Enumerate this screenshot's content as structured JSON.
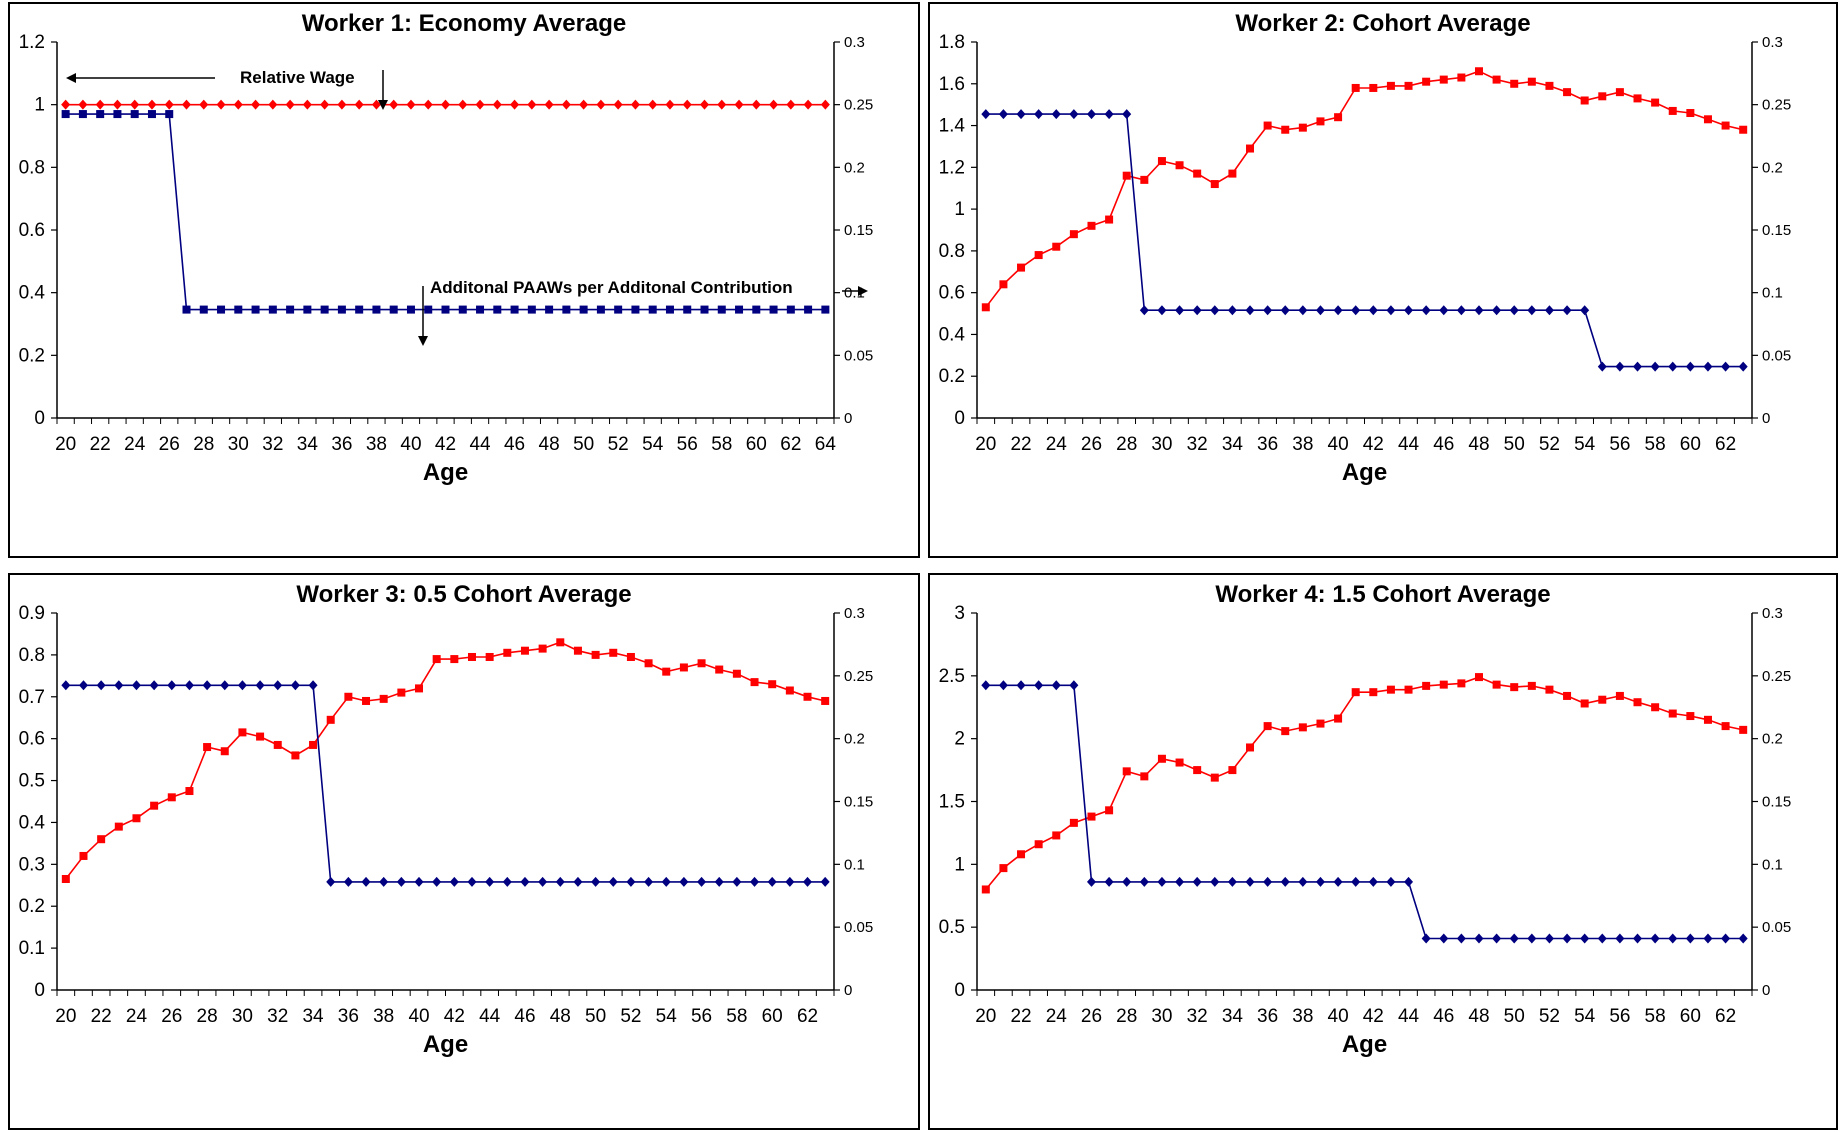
{
  "colors": {
    "wage": "#ff0000",
    "paaw": "#000080",
    "axis": "#000000"
  },
  "chart_data": [
    {
      "type": "line",
      "title": "Worker 1: Economy Average",
      "xlabel": "Age",
      "x_ticks": [
        "20",
        "22",
        "24",
        "26",
        "28",
        "30",
        "32",
        "34",
        "36",
        "38",
        "40",
        "42",
        "44",
        "46",
        "48",
        "50",
        "52",
        "54",
        "56",
        "58",
        "60",
        "62",
        "64"
      ],
      "ages": [
        20,
        21,
        22,
        23,
        24,
        25,
        26,
        27,
        28,
        29,
        30,
        31,
        32,
        33,
        34,
        35,
        36,
        37,
        38,
        39,
        40,
        41,
        42,
        43,
        44,
        45,
        46,
        47,
        48,
        49,
        50,
        51,
        52,
        53,
        54,
        55,
        56,
        57,
        58,
        59,
        60,
        61,
        62,
        63,
        64
      ],
      "ylim": [
        0,
        1.2
      ],
      "y_ticks": [
        "0",
        "0.2",
        "0.4",
        "0.6",
        "0.8",
        "1",
        "1.2"
      ],
      "y2lim": [
        0,
        0.3
      ],
      "y2_ticks": [
        "0",
        "0.05",
        "0.1",
        "0.15",
        "0.2",
        "0.25",
        "0.3"
      ],
      "series": [
        {
          "axis": "left",
          "color": "#ff0000",
          "marker": "diamond",
          "values": [
            1,
            1,
            1,
            1,
            1,
            1,
            1,
            1,
            1,
            1,
            1,
            1,
            1,
            1,
            1,
            1,
            1,
            1,
            1,
            1,
            1,
            1,
            1,
            1,
            1,
            1,
            1,
            1,
            1,
            1,
            1,
            1,
            1,
            1,
            1,
            1,
            1,
            1,
            1,
            1,
            1,
            1,
            1,
            1,
            1
          ]
        },
        {
          "axis": "right",
          "color": "#000080",
          "marker": "square",
          "values": [
            0.2425,
            0.2425,
            0.2425,
            0.2425,
            0.2425,
            0.2425,
            0.2425,
            0.0865,
            0.0865,
            0.0865,
            0.0865,
            0.0865,
            0.0865,
            0.0865,
            0.0865,
            0.0865,
            0.0865,
            0.0865,
            0.0865,
            0.0865,
            0.0865,
            0.0865,
            0.0865,
            0.0865,
            0.0865,
            0.0865,
            0.0865,
            0.0865,
            0.0865,
            0.0865,
            0.0865,
            0.0865,
            0.0865,
            0.0865,
            0.0865,
            0.0865,
            0.0865,
            0.0865,
            0.0865,
            0.0865,
            0.0865,
            0.0865,
            0.0865,
            0.0865,
            0.0865
          ]
        }
      ],
      "annotations": [
        {
          "text": "Relative Wage",
          "arrow": "left"
        },
        {
          "text": "Additonal PAAWs per Additonal Contribution",
          "arrow": "right"
        }
      ]
    },
    {
      "type": "line",
      "title": "Worker 2: Cohort Average",
      "xlabel": "Age",
      "x_ticks": [
        "20",
        "22",
        "24",
        "26",
        "28",
        "30",
        "32",
        "34",
        "36",
        "38",
        "40",
        "42",
        "44",
        "46",
        "48",
        "50",
        "52",
        "54",
        "56",
        "58",
        "60",
        "62"
      ],
      "ages": [
        20,
        21,
        22,
        23,
        24,
        25,
        26,
        27,
        28,
        29,
        30,
        31,
        32,
        33,
        34,
        35,
        36,
        37,
        38,
        39,
        40,
        41,
        42,
        43,
        44,
        45,
        46,
        47,
        48,
        49,
        50,
        51,
        52,
        53,
        54,
        55,
        56,
        57,
        58,
        59,
        60,
        61,
        62,
        63
      ],
      "ylim": [
        0,
        1.8
      ],
      "y_ticks": [
        "0",
        "0.2",
        "0.4",
        "0.6",
        "0.8",
        "1",
        "1.2",
        "1.4",
        "1.6",
        "1.8"
      ],
      "y2lim": [
        0,
        0.3
      ],
      "y2_ticks": [
        "0",
        "0.05",
        "0.1",
        "0.15",
        "0.2",
        "0.25",
        "0.3"
      ],
      "series": [
        {
          "axis": "left",
          "color": "#ff0000",
          "marker": "square",
          "values": [
            0.53,
            0.64,
            0.72,
            0.78,
            0.82,
            0.88,
            0.92,
            0.95,
            1.16,
            1.14,
            1.23,
            1.21,
            1.17,
            1.12,
            1.17,
            1.29,
            1.4,
            1.38,
            1.39,
            1.42,
            1.44,
            1.58,
            1.58,
            1.59,
            1.59,
            1.61,
            1.62,
            1.63,
            1.66,
            1.62,
            1.6,
            1.61,
            1.59,
            1.56,
            1.52,
            1.54,
            1.56,
            1.53,
            1.51,
            1.47,
            1.46,
            1.43,
            1.4,
            1.38
          ]
        },
        {
          "axis": "right",
          "color": "#000080",
          "marker": "diamond",
          "values": [
            0.2425,
            0.2425,
            0.2425,
            0.2425,
            0.2425,
            0.2425,
            0.2425,
            0.2425,
            0.2425,
            0.086,
            0.086,
            0.086,
            0.086,
            0.086,
            0.086,
            0.086,
            0.086,
            0.086,
            0.086,
            0.086,
            0.086,
            0.086,
            0.086,
            0.086,
            0.086,
            0.086,
            0.086,
            0.086,
            0.086,
            0.086,
            0.086,
            0.086,
            0.086,
            0.086,
            0.086,
            0.041,
            0.041,
            0.041,
            0.041,
            0.041,
            0.041,
            0.041,
            0.041,
            0.041
          ]
        }
      ]
    },
    {
      "type": "line",
      "title": "Worker 3: 0.5 Cohort Average",
      "xlabel": "Age",
      "x_ticks": [
        "20",
        "22",
        "24",
        "26",
        "28",
        "30",
        "32",
        "34",
        "36",
        "38",
        "40",
        "42",
        "44",
        "46",
        "48",
        "50",
        "52",
        "54",
        "56",
        "58",
        "60",
        "62"
      ],
      "ages": [
        20,
        21,
        22,
        23,
        24,
        25,
        26,
        27,
        28,
        29,
        30,
        31,
        32,
        33,
        34,
        35,
        36,
        37,
        38,
        39,
        40,
        41,
        42,
        43,
        44,
        45,
        46,
        47,
        48,
        49,
        50,
        51,
        52,
        53,
        54,
        55,
        56,
        57,
        58,
        59,
        60,
        61,
        62,
        63
      ],
      "ylim": [
        0,
        0.9
      ],
      "y_ticks": [
        "0",
        "0.1",
        "0.2",
        "0.3",
        "0.4",
        "0.5",
        "0.6",
        "0.7",
        "0.8",
        "0.9"
      ],
      "y2lim": [
        0,
        0.3
      ],
      "y2_ticks": [
        "0",
        "0.05",
        "0.1",
        "0.15",
        "0.2",
        "0.25",
        "0.3"
      ],
      "series": [
        {
          "axis": "left",
          "color": "#ff0000",
          "marker": "square",
          "values": [
            0.265,
            0.32,
            0.36,
            0.39,
            0.41,
            0.44,
            0.46,
            0.475,
            0.58,
            0.57,
            0.615,
            0.605,
            0.585,
            0.56,
            0.585,
            0.645,
            0.7,
            0.69,
            0.695,
            0.71,
            0.72,
            0.79,
            0.79,
            0.795,
            0.795,
            0.805,
            0.81,
            0.815,
            0.83,
            0.81,
            0.8,
            0.805,
            0.795,
            0.78,
            0.76,
            0.77,
            0.78,
            0.765,
            0.755,
            0.735,
            0.73,
            0.715,
            0.7,
            0.69
          ]
        },
        {
          "axis": "right",
          "color": "#000080",
          "marker": "diamond",
          "values": [
            0.2425,
            0.2425,
            0.2425,
            0.2425,
            0.2425,
            0.2425,
            0.2425,
            0.2425,
            0.2425,
            0.2425,
            0.2425,
            0.2425,
            0.2425,
            0.2425,
            0.2425,
            0.086,
            0.086,
            0.086,
            0.086,
            0.086,
            0.086,
            0.086,
            0.086,
            0.086,
            0.086,
            0.086,
            0.086,
            0.086,
            0.086,
            0.086,
            0.086,
            0.086,
            0.086,
            0.086,
            0.086,
            0.086,
            0.086,
            0.086,
            0.086,
            0.086,
            0.086,
            0.086,
            0.086,
            0.086
          ]
        }
      ]
    },
    {
      "type": "line",
      "title": "Worker 4: 1.5 Cohort Average",
      "xlabel": "Age",
      "x_ticks": [
        "20",
        "22",
        "24",
        "26",
        "28",
        "30",
        "32",
        "34",
        "36",
        "38",
        "40",
        "42",
        "44",
        "46",
        "48",
        "50",
        "52",
        "54",
        "56",
        "58",
        "60",
        "62"
      ],
      "ages": [
        20,
        21,
        22,
        23,
        24,
        25,
        26,
        27,
        28,
        29,
        30,
        31,
        32,
        33,
        34,
        35,
        36,
        37,
        38,
        39,
        40,
        41,
        42,
        43,
        44,
        45,
        46,
        47,
        48,
        49,
        50,
        51,
        52,
        53,
        54,
        55,
        56,
        57,
        58,
        59,
        60,
        61,
        62,
        63
      ],
      "ylim": [
        0,
        3
      ],
      "y_ticks": [
        "0",
        "0.5",
        "1",
        "1.5",
        "2",
        "2.5",
        "3"
      ],
      "y2lim": [
        0,
        0.3
      ],
      "y2_ticks": [
        "0",
        "0.05",
        "0.1",
        "0.15",
        "0.2",
        "0.25",
        "0.3"
      ],
      "series": [
        {
          "axis": "left",
          "color": "#ff0000",
          "marker": "square",
          "values": [
            0.8,
            0.97,
            1.08,
            1.16,
            1.23,
            1.33,
            1.38,
            1.43,
            1.74,
            1.7,
            1.84,
            1.81,
            1.75,
            1.69,
            1.75,
            1.93,
            2.1,
            2.06,
            2.09,
            2.12,
            2.16,
            2.37,
            2.37,
            2.39,
            2.39,
            2.42,
            2.43,
            2.44,
            2.49,
            2.43,
            2.41,
            2.42,
            2.39,
            2.34,
            2.28,
            2.31,
            2.34,
            2.29,
            2.25,
            2.2,
            2.18,
            2.15,
            2.1,
            2.07
          ]
        },
        {
          "axis": "right",
          "color": "#000080",
          "marker": "diamond",
          "values": [
            0.2425,
            0.2425,
            0.2425,
            0.2425,
            0.2425,
            0.2425,
            0.086,
            0.086,
            0.086,
            0.086,
            0.086,
            0.086,
            0.086,
            0.086,
            0.086,
            0.086,
            0.086,
            0.086,
            0.086,
            0.086,
            0.086,
            0.086,
            0.086,
            0.086,
            0.086,
            0.041,
            0.041,
            0.041,
            0.041,
            0.041,
            0.041,
            0.041,
            0.041,
            0.041,
            0.041,
            0.041,
            0.041,
            0.041,
            0.041,
            0.041,
            0.041,
            0.041,
            0.041,
            0.041
          ]
        }
      ]
    }
  ]
}
